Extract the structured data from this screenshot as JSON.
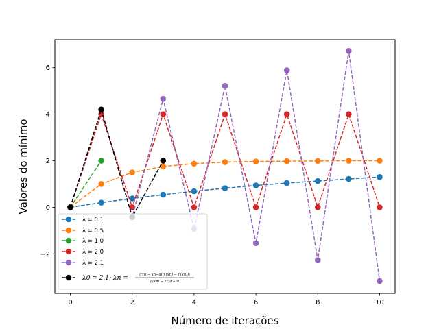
{
  "chart_data": {
    "type": "line",
    "title": "",
    "xlabel": "Número de iterações",
    "ylabel": "Valores do mínimo",
    "xlim": [
      -0.5,
      10.5
    ],
    "ylim": [
      -3.7,
      7.2
    ],
    "xticks": [
      0,
      2,
      4,
      6,
      8,
      10
    ],
    "yticks": [
      -2,
      0,
      2,
      4,
      6
    ],
    "xtick_labels": [
      "0",
      "2",
      "4",
      "6",
      "8",
      "10"
    ],
    "ytick_labels": [
      "−2",
      "0",
      "2",
      "4",
      "6"
    ],
    "grid": false,
    "legend_position": "lower-left",
    "series": [
      {
        "name": "λ = 0.1",
        "color": "#1f77b4",
        "line": "dashed",
        "x": [
          0,
          1,
          2,
          3,
          4,
          5,
          6,
          7,
          8,
          9,
          10
        ],
        "y": [
          0,
          0.2,
          0.38,
          0.54,
          0.69,
          0.82,
          0.94,
          1.04,
          1.13,
          1.22,
          1.3
        ]
      },
      {
        "name": "λ = 0.5",
        "color": "#ff7f0e",
        "line": "dashed",
        "x": [
          0,
          1,
          2,
          3,
          4,
          5,
          6,
          7,
          8,
          9,
          10
        ],
        "y": [
          0,
          1.0,
          1.5,
          1.75,
          1.875,
          1.94,
          1.97,
          1.98,
          1.99,
          2.0,
          2.0
        ]
      },
      {
        "name": "λ = 1.0",
        "color": "#2ca02c",
        "line": "dashed",
        "x": [
          0,
          1
        ],
        "y": [
          0,
          2.0
        ]
      },
      {
        "name": "λ = 2.0",
        "color": "#d62728",
        "line": "dashed",
        "x": [
          0,
          1,
          2,
          3,
          4,
          5,
          6,
          7,
          8,
          9,
          10
        ],
        "y": [
          0,
          4.0,
          0,
          4.0,
          0,
          4.0,
          0,
          4.0,
          0,
          4.0,
          0
        ]
      },
      {
        "name": "λ = 2.1",
        "color": "#9467bd",
        "line": "dashed",
        "x": [
          0,
          1,
          2,
          3,
          4,
          5,
          6,
          7,
          8,
          9,
          10
        ],
        "y": [
          0,
          4.2,
          -0.42,
          4.66,
          -0.93,
          5.22,
          -1.54,
          5.89,
          -2.27,
          6.72,
          -3.17
        ]
      },
      {
        "name": "λ0 = 2.1; λn = |(xn − xn−a)(f′(xn) − f′(xn))| / (f′(xn) − f′(xn−a))",
        "color": "#000000",
        "line": "dashed",
        "x": [
          0,
          1,
          2,
          3
        ],
        "y": [
          0,
          4.2,
          -0.42,
          2.0
        ]
      }
    ],
    "legend_math": {
      "lhs": "λ0 = 2.1; λn =",
      "numerator": "|(xn − xn−a)(f′(xn) − f′(xn))|",
      "denominator": "f′(xn) − f′(xn−a)"
    }
  }
}
